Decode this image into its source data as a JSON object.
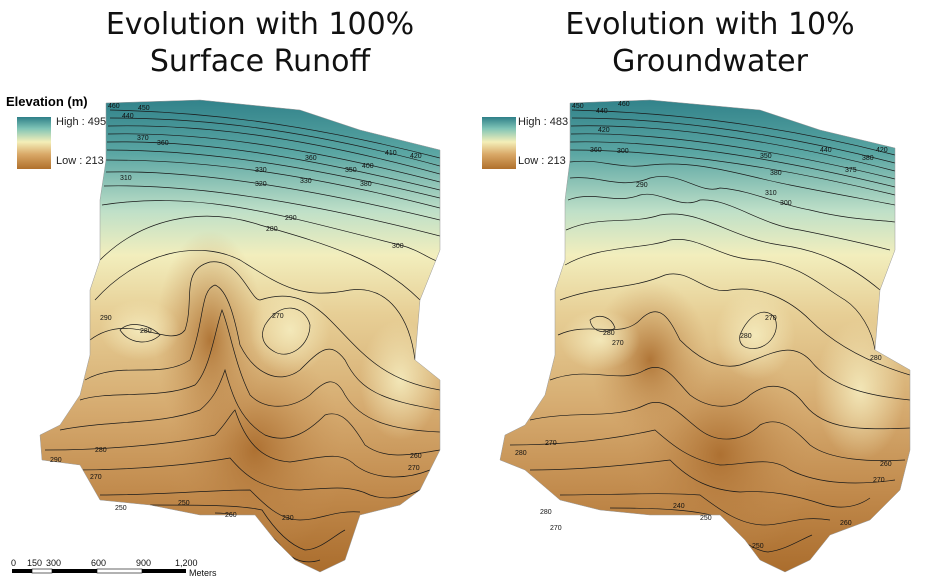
{
  "panels": {
    "left": {
      "title_line1": "Evolution with 100%",
      "title_line2": "Surface Runoff",
      "legend_high": "High : 495",
      "legend_low": "Low : 213",
      "contour_labels": [
        "460",
        "450",
        "440",
        "370",
        "360",
        "310",
        "320",
        "330",
        "290",
        "280",
        "290",
        "280",
        "270",
        "290",
        "280",
        "270",
        "260",
        "270",
        "250",
        "260",
        "250",
        "230",
        "330",
        "300",
        "400",
        "410",
        "420",
        "380",
        "350",
        "360"
      ]
    },
    "right": {
      "title_line1": "Evolution with 10%",
      "title_line2": "Groundwater",
      "legend_high": "High : 483",
      "legend_low": "Low : 213",
      "contour_labels": [
        "450",
        "460",
        "440",
        "420",
        "360",
        "350",
        "380",
        "300",
        "290",
        "310",
        "300",
        "280",
        "270",
        "270",
        "280",
        "280",
        "280",
        "270",
        "280",
        "260",
        "270",
        "240",
        "250",
        "250",
        "260",
        "270",
        "420",
        "440",
        "375",
        "380"
      ]
    },
    "legend_title": "Elevation (m)",
    "scale_bar": {
      "ticks": [
        "0",
        "150",
        "300",
        "600",
        "900",
        "1,200"
      ],
      "unit": "Meters"
    },
    "colors": {
      "high": "#2e7f88",
      "mid": "#f4efb8",
      "low": "#b0702c",
      "contour": "#1a1a1a"
    }
  }
}
